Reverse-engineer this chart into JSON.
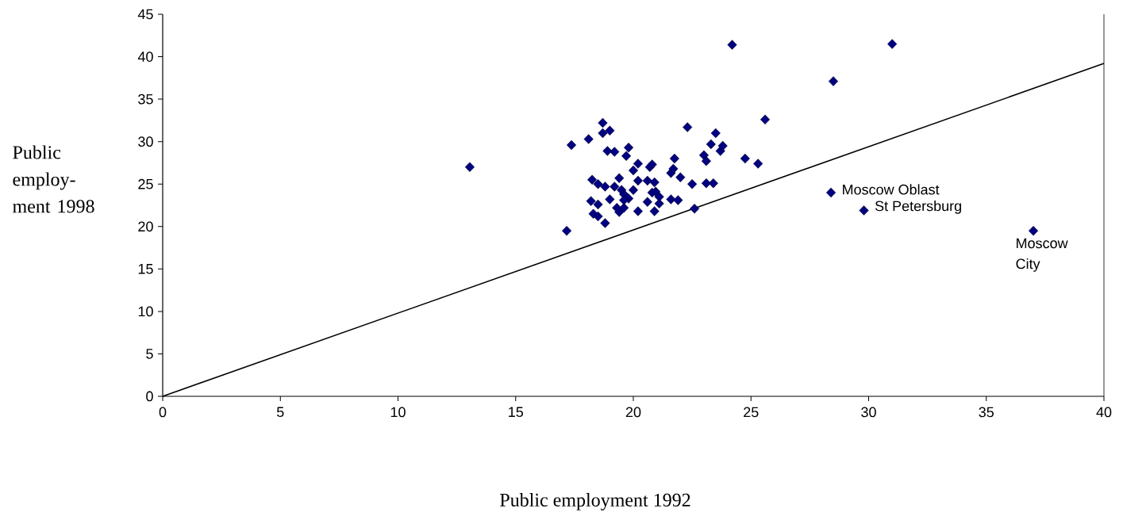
{
  "chart_data": {
    "type": "scatter",
    "xlabel": "Public employment 1992",
    "ylabel": "Public employ-ment 1998",
    "xlim": [
      0,
      40
    ],
    "ylim": [
      0,
      45
    ],
    "xticks": [
      0,
      5,
      10,
      15,
      20,
      25,
      30,
      35,
      40
    ],
    "yticks": [
      0,
      5,
      10,
      15,
      20,
      25,
      30,
      35,
      40,
      45
    ],
    "grid": false,
    "marker": "diamond",
    "series": [
      {
        "color": "#000080",
        "x": [
          13.05,
          17.17,
          17.37,
          18.1,
          18.7,
          18.7,
          19.0,
          18.9,
          19.2,
          19.8,
          19.7,
          18.25,
          18.5,
          18.8,
          18.2,
          18.5,
          18.3,
          18.5,
          18.8,
          19.0,
          19.2,
          19.4,
          19.5,
          19.6,
          19.3,
          19.4,
          19.6,
          19.8,
          19.6,
          20.0,
          20.0,
          20.2,
          20.2,
          20.2,
          20.6,
          20.6,
          20.7,
          20.8,
          20.9,
          20.8,
          20.95,
          21.1,
          21.1,
          20.9,
          21.6,
          21.7,
          21.75,
          21.6,
          21.9,
          22.0,
          22.3,
          22.5,
          22.6,
          23.0,
          23.1,
          23.1,
          23.4,
          23.3,
          23.5,
          23.7,
          23.8,
          24.75,
          25.3,
          25.6,
          24.2,
          28.5,
          31.0,
          28.4,
          29.8,
          37.0
        ],
        "values": [
          27.0,
          19.5,
          29.6,
          30.3,
          32.2,
          31.0,
          31.3,
          28.9,
          28.8,
          29.3,
          28.3,
          25.5,
          25.0,
          24.7,
          23.0,
          22.6,
          21.5,
          21.2,
          20.4,
          23.2,
          24.7,
          25.7,
          24.3,
          23.8,
          22.2,
          21.7,
          22.2,
          23.3,
          23.1,
          24.3,
          26.6,
          27.4,
          25.4,
          21.8,
          25.4,
          22.9,
          27.0,
          27.3,
          25.2,
          24.0,
          24.1,
          23.5,
          22.7,
          21.8,
          26.3,
          26.8,
          28.0,
          23.2,
          23.1,
          25.8,
          31.7,
          25.0,
          22.1,
          28.4,
          27.7,
          25.1,
          25.1,
          29.7,
          31.0,
          28.9,
          29.5,
          28.0,
          27.4,
          32.6,
          41.4,
          37.1,
          41.5,
          24.0,
          21.9,
          19.5
        ]
      },
      {
        "type": "line",
        "color": "#000000",
        "marker": "none",
        "x": [
          0,
          40
        ],
        "values": [
          0,
          39.2
        ]
      }
    ],
    "annotations": [
      {
        "text": "Moscow  Oblast",
        "x": 28.4,
        "y": 24.0
      },
      {
        "text": "St Petersburg",
        "x": 29.8,
        "y": 21.9
      },
      {
        "text": "Moscow City",
        "x": 37.0,
        "y": 19.5
      }
    ]
  }
}
